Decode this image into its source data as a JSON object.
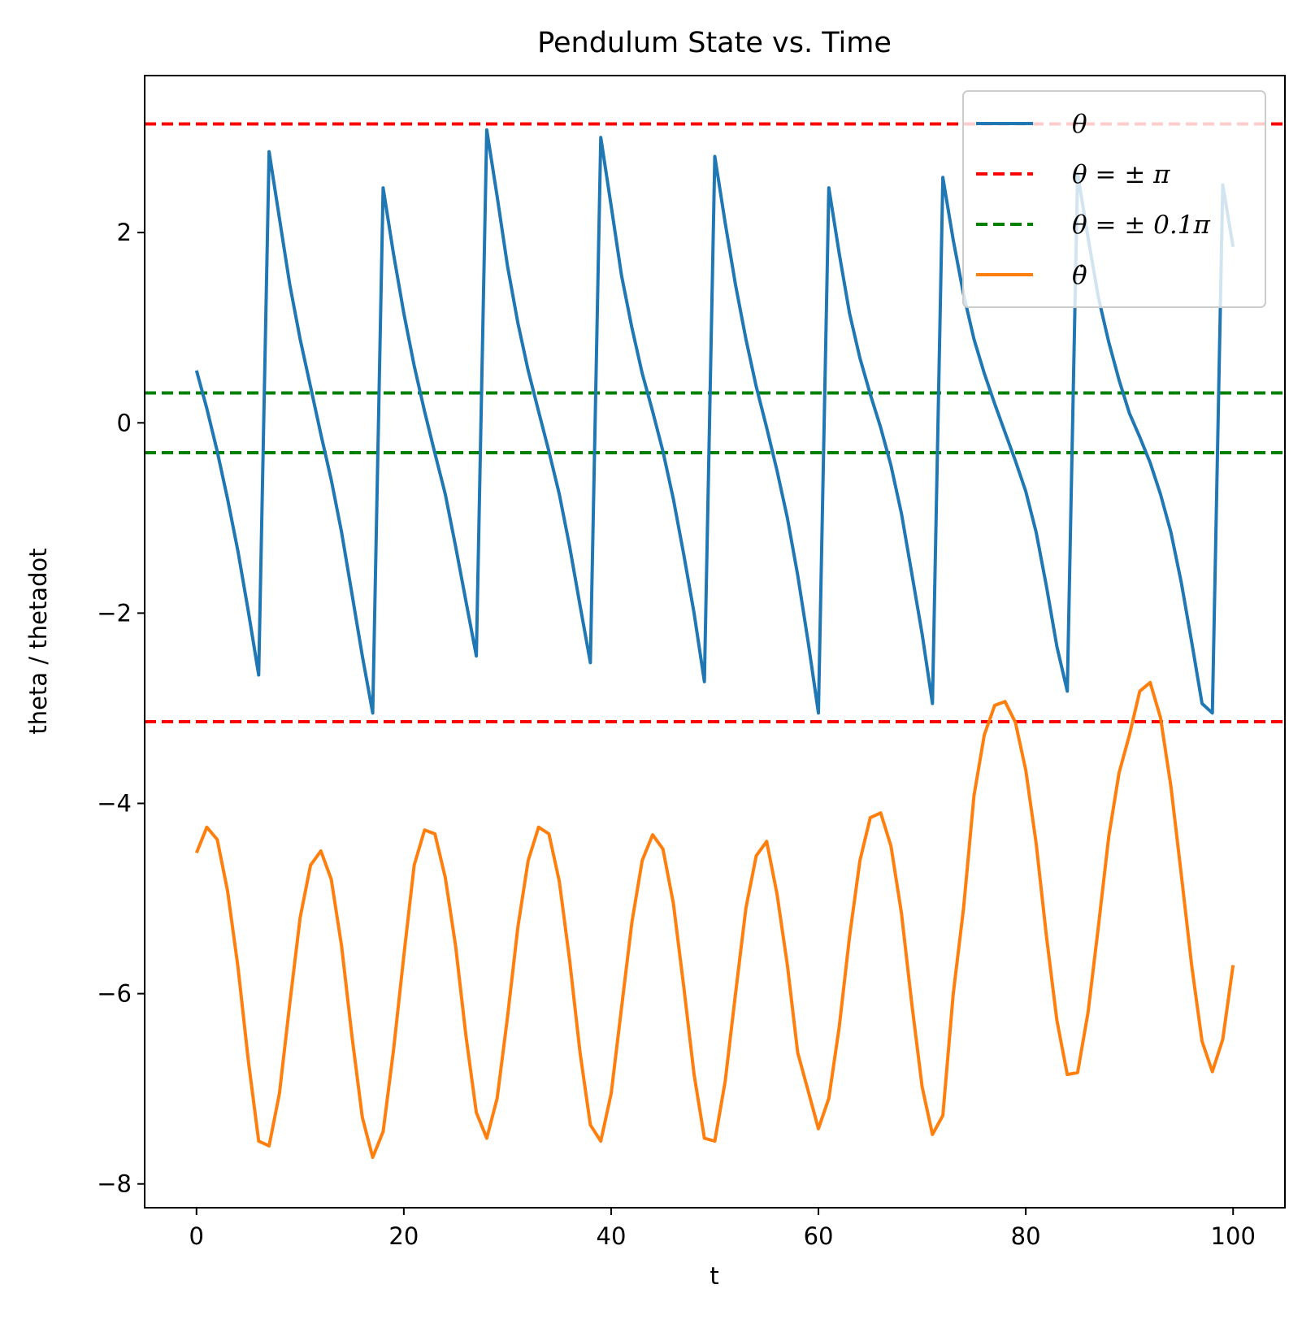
{
  "chart_data": {
    "type": "line",
    "title": "Pendulum State vs. Time",
    "xlabel": "t",
    "ylabel": "theta / thetadot",
    "xlim": [
      -5,
      105
    ],
    "ylim": [
      -8.25,
      3.65
    ],
    "xticks": [
      0,
      20,
      40,
      60,
      80,
      100
    ],
    "xtick_labels": [
      "0",
      "20",
      "40",
      "60",
      "80",
      "100"
    ],
    "yticks": [
      -8,
      -6,
      -4,
      -2,
      0,
      2
    ],
    "ytick_labels": [
      "−8",
      "−6",
      "−4",
      "−2",
      "0",
      "2"
    ],
    "grid": false,
    "legend_position": "upper-right",
    "reference_lines": [
      {
        "name": "θ = ± π",
        "y": [
          3.14159,
          -3.14159
        ],
        "color": "#ff0000",
        "style": "dashed"
      },
      {
        "name": "θ = ± 0.1π",
        "y": [
          0.314159,
          -0.314159
        ],
        "color": "#008000",
        "style": "dashed"
      }
    ],
    "series": [
      {
        "name": "θ",
        "color": "#1f77b4",
        "x": [
          0,
          1,
          2,
          3,
          4,
          5,
          6,
          7,
          8,
          9,
          10,
          11,
          12,
          13,
          14,
          15,
          16,
          17,
          18,
          19,
          20,
          21,
          22,
          23,
          24,
          25,
          26,
          27,
          28,
          29,
          30,
          31,
          32,
          33,
          34,
          35,
          36,
          37,
          38,
          39,
          40,
          41,
          42,
          43,
          44,
          45,
          46,
          47,
          48,
          49,
          50,
          51,
          52,
          53,
          54,
          55,
          56,
          57,
          58,
          59,
          60,
          61,
          62,
          63,
          64,
          65,
          66,
          67,
          68,
          69,
          70,
          71,
          72,
          73,
          74,
          75,
          76,
          77,
          78,
          79,
          80,
          81,
          82,
          83,
          84,
          85,
          86,
          87,
          88,
          89,
          90,
          91,
          92,
          93,
          94,
          95,
          96,
          97,
          98,
          99,
          100
        ],
        "y": [
          0.55,
          0.15,
          -0.3,
          -0.8,
          -1.35,
          -1.98,
          -2.65,
          2.85,
          2.15,
          1.45,
          0.88,
          0.38,
          -0.12,
          -0.6,
          -1.15,
          -1.8,
          -2.45,
          -3.05,
          2.47,
          1.78,
          1.15,
          0.6,
          0.12,
          -0.32,
          -0.75,
          -1.3,
          -1.88,
          -2.45,
          3.08,
          2.38,
          1.65,
          1.05,
          0.55,
          0.12,
          -0.3,
          -0.75,
          -1.3,
          -1.92,
          -2.52,
          3.0,
          2.28,
          1.55,
          1.0,
          0.52,
          0.12,
          -0.3,
          -0.8,
          -1.38,
          -2.0,
          -2.72,
          2.8,
          2.1,
          1.45,
          0.88,
          0.38,
          -0.05,
          -0.5,
          -1.0,
          -1.6,
          -2.3,
          -3.05,
          2.47,
          1.78,
          1.15,
          0.68,
          0.3,
          -0.05,
          -0.45,
          -0.95,
          -1.58,
          -2.22,
          -2.95,
          2.58,
          1.92,
          1.35,
          0.88,
          0.52,
          0.2,
          -0.1,
          -0.4,
          -0.72,
          -1.15,
          -1.72,
          -2.35,
          -2.82,
          2.62,
          1.95,
          1.32,
          0.85,
          0.45,
          0.1,
          -0.15,
          -0.42,
          -0.75,
          -1.15,
          -1.68,
          -2.3,
          -2.95,
          -3.05,
          2.5,
          1.85
        ]
      },
      {
        "name": "θ̇",
        "color": "#ff7f0e",
        "x": [
          0,
          1,
          2,
          3,
          4,
          5,
          6,
          7,
          8,
          9,
          10,
          11,
          12,
          13,
          14,
          15,
          16,
          17,
          18,
          19,
          20,
          21,
          22,
          23,
          24,
          25,
          26,
          27,
          28,
          29,
          30,
          31,
          32,
          33,
          34,
          35,
          36,
          37,
          38,
          39,
          40,
          41,
          42,
          43,
          44,
          45,
          46,
          47,
          48,
          49,
          50,
          51,
          52,
          53,
          54,
          55,
          56,
          57,
          58,
          59,
          60,
          61,
          62,
          63,
          64,
          65,
          66,
          67,
          68,
          69,
          70,
          71,
          72,
          73,
          74,
          75,
          76,
          77,
          78,
          79,
          80,
          81,
          82,
          83,
          84,
          85,
          86,
          87,
          88,
          89,
          90,
          91,
          92,
          93,
          94,
          95,
          96,
          97,
          98,
          99,
          100
        ],
        "y": [
          -4.52,
          -4.25,
          -4.38,
          -4.92,
          -5.72,
          -6.7,
          -7.55,
          -7.6,
          -7.05,
          -6.1,
          -5.2,
          -4.65,
          -4.5,
          -4.8,
          -5.5,
          -6.45,
          -7.3,
          -7.72,
          -7.45,
          -6.6,
          -5.6,
          -4.65,
          -4.28,
          -4.32,
          -4.78,
          -5.5,
          -6.45,
          -7.25,
          -7.52,
          -7.1,
          -6.25,
          -5.3,
          -4.6,
          -4.25,
          -4.32,
          -4.82,
          -5.65,
          -6.62,
          -7.38,
          -7.55,
          -7.05,
          -6.15,
          -5.25,
          -4.6,
          -4.33,
          -4.48,
          -5.05,
          -5.92,
          -6.85,
          -7.52,
          -7.55,
          -6.92,
          -6.0,
          -5.1,
          -4.55,
          -4.4,
          -4.95,
          -5.7,
          -6.62,
          -7.02,
          -7.42,
          -7.1,
          -6.35,
          -5.4,
          -4.6,
          -4.15,
          -4.1,
          -4.45,
          -5.15,
          -6.1,
          -6.98,
          -7.48,
          -7.28,
          -6.0,
          -5.1,
          -3.92,
          -3.28,
          -2.97,
          -2.93,
          -3.15,
          -3.65,
          -4.42,
          -5.4,
          -6.28,
          -6.85,
          -6.83,
          -6.2,
          -5.3,
          -4.35,
          -3.68,
          -3.28,
          -2.82,
          -2.73,
          -3.1,
          -3.82,
          -4.75,
          -5.7,
          -6.5,
          -6.82,
          -6.48,
          -5.7
        ]
      }
    ]
  }
}
